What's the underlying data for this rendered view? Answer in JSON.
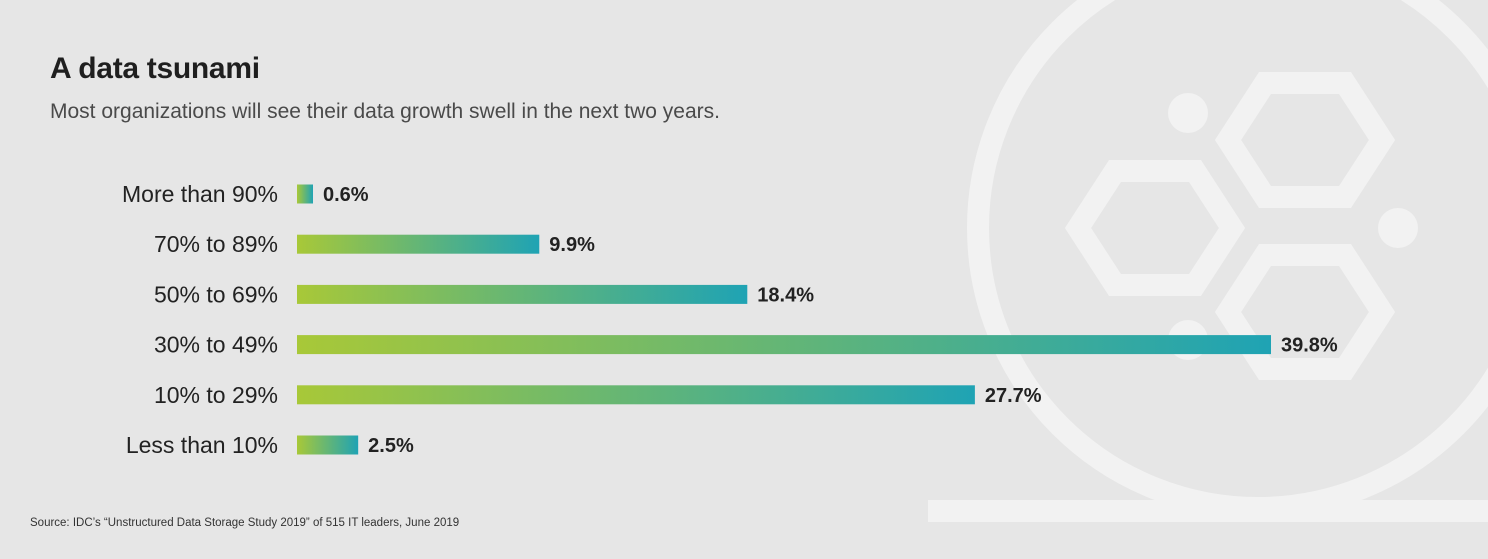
{
  "title": "A data tsunami",
  "subtitle": "Most organizations will see their data growth swell in the next two years.",
  "source": "Source: IDC’s “Unstructured Data Storage Study 2019” of 515 IT leaders, June 2019",
  "colors": {
    "background": "#e6e6e6",
    "decor": "#f2f2f2",
    "bar_start": "#a8c838",
    "bar_end": "#1fa3b4",
    "label_text": "#222222"
  },
  "chart_data": {
    "type": "bar",
    "orientation": "horizontal",
    "categories": [
      "More than 90%",
      "70% to 89%",
      "50% to 69%",
      "30% to 49%",
      "10% to 29%",
      "Less than 10%"
    ],
    "values": [
      0.6,
      9.9,
      18.4,
      39.8,
      27.7,
      2.5
    ],
    "value_labels": [
      "0.6%",
      "9.9%",
      "18.4%",
      "39.8%",
      "27.7%",
      "2.5%"
    ],
    "xlim": [
      0,
      40
    ],
    "grid": false,
    "legend": "none"
  }
}
